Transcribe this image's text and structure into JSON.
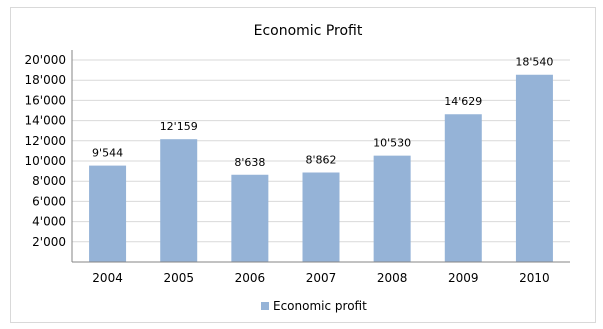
{
  "chart_data": {
    "type": "bar",
    "title": "Economic Profit",
    "categories": [
      "2004",
      "2005",
      "2006",
      "2007",
      "2008",
      "2009",
      "2010"
    ],
    "series": [
      {
        "name": "Economic profit",
        "values": [
          9544,
          12159,
          8638,
          8862,
          10530,
          14629,
          18540
        ],
        "labels": [
          "9'544",
          "12'159",
          "8'638",
          "8'862",
          "10'530",
          "14'629",
          "18'540"
        ],
        "color": "#95b3d7"
      }
    ],
    "y_ticks": [
      "2'000",
      "4'000",
      "6'000",
      "8'000",
      "10'000",
      "12'000",
      "14'000",
      "16'000",
      "18'000",
      "20'000"
    ],
    "ylim": [
      0,
      20000
    ],
    "y_step": 2000,
    "grid": true,
    "gridline_color": "#d9d9d9",
    "legend_position": "bottom"
  }
}
